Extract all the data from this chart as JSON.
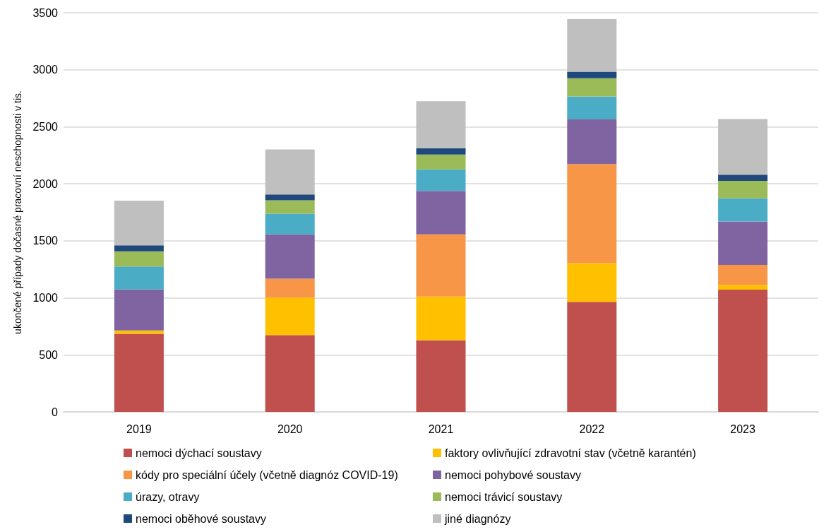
{
  "chart_data": {
    "type": "bar",
    "stacked": true,
    "ylabel": "ukončené případy dočasné pracovní neschopnosti v tis.",
    "categories": [
      "2019",
      "2020",
      "2021",
      "2022",
      "2023"
    ],
    "series": [
      {
        "name": "nemoci dýchací soustavy",
        "color": "#c0504d",
        "values": [
          685,
          673,
          628,
          965,
          1072
        ]
      },
      {
        "name": "faktory ovlivňující zdravotní stav (včetně karantén)",
        "color": "#ffc000",
        "values": [
          29,
          329,
          383,
          339,
          41
        ]
      },
      {
        "name": "kódy pro speciální účely (včetně diagnóz COVID-19)",
        "color": "#f79646",
        "values": [
          0,
          165,
          546,
          869,
          175
        ]
      },
      {
        "name": "nemoci pohybové soustavy",
        "color": "#8064a2",
        "values": [
          360,
          389,
          380,
          391,
          381
        ]
      },
      {
        "name": "úrazy, otravy",
        "color": "#4bacc6",
        "values": [
          200,
          181,
          189,
          202,
          203
        ]
      },
      {
        "name": "nemoci trávicí soustavy",
        "color": "#9bbb59",
        "values": [
          133,
          119,
          131,
          160,
          153
        ]
      },
      {
        "name": "nemoci oběhové soustavy",
        "color": "#1f497d",
        "values": [
          54,
          51,
          54,
          56,
          55
        ]
      },
      {
        "name": "jiné diagnózy",
        "color": "#bfbfbf",
        "values": [
          391,
          395,
          413,
          463,
          488
        ]
      }
    ],
    "ylim": [
      0,
      3500
    ],
    "yticks": [
      0,
      500,
      1000,
      1500,
      2000,
      2500,
      3000,
      3500
    ],
    "grid": "y",
    "legend": "bottom"
  }
}
